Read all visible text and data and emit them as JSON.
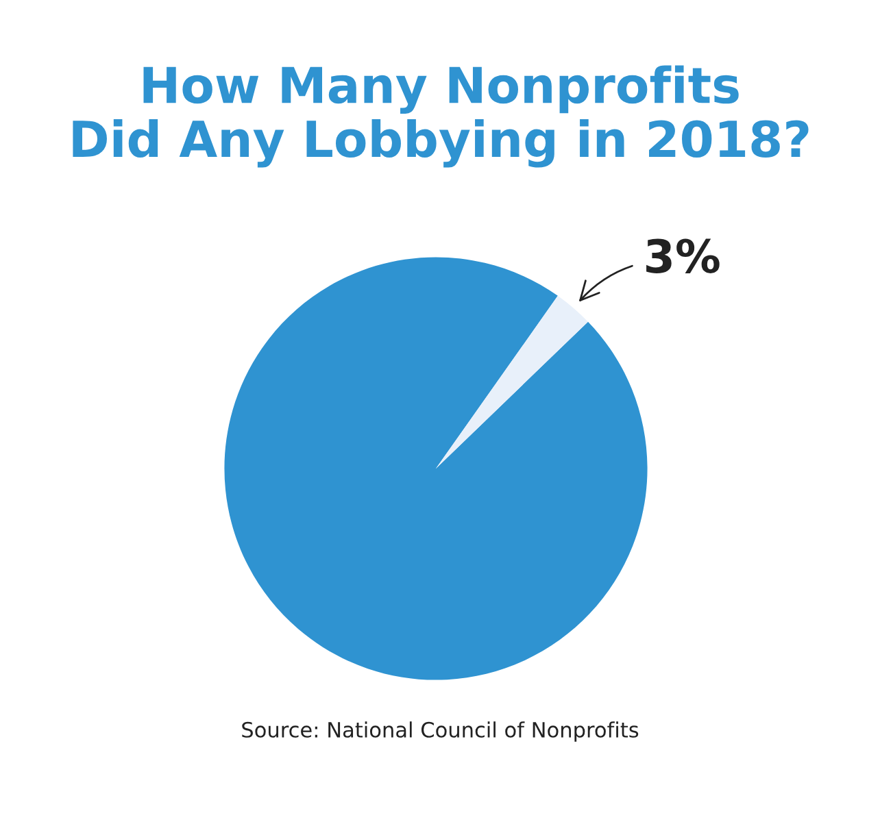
{
  "chart_data": {
    "type": "pie",
    "title": "How Many Nonprofits\nDid Any Lobbying in 2018?",
    "categories": [
      null,
      null
    ],
    "values": [
      97,
      3
    ],
    "colors": [
      "#2f93d1",
      "#e8f0fa"
    ],
    "value_labels": [
      null,
      "3%"
    ],
    "annotations": [
      "Source: National Council of Nonprofits"
    ]
  }
}
